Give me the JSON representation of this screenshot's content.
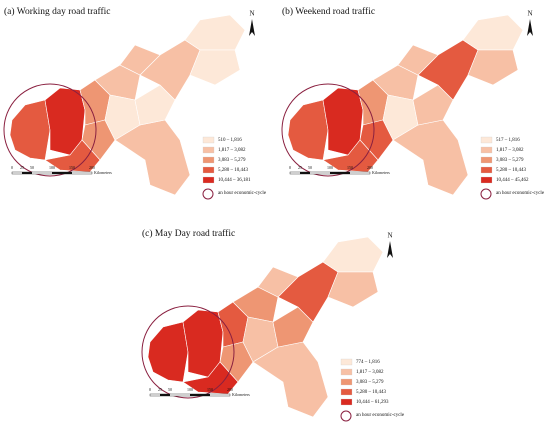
{
  "panels": [
    {
      "title": "(a) Working day road traffic",
      "legend": [
        "510 – 1,816",
        "1,817 – 3,082",
        "3,083 – 5,279",
        "5,280 – 10,443",
        "10,444 – 36,181"
      ],
      "circle_label": "an hour economic-cycle",
      "north": "N",
      "scale": [
        "0",
        "25",
        "50",
        "100",
        "150",
        "200"
      ],
      "scale_unit": "Kilometers"
    },
    {
      "title": "(b) Weekend road traffic",
      "legend": [
        "517 – 1,816",
        "1,817 – 3,082",
        "3,083 – 5,279",
        "5,280 – 10,443",
        "10,444 – 45,462"
      ],
      "circle_label": "an hour economic-cycle",
      "north": "N",
      "scale": [
        "0",
        "25",
        "50",
        "100",
        "150",
        "200"
      ],
      "scale_unit": "Kilometers"
    },
    {
      "title": "(c) May Day road traffic",
      "legend": [
        "774 – 1,816",
        "1,817 – 3,082",
        "3,083 – 5,279",
        "5,280 – 10,443",
        "10,444 – 61,293"
      ],
      "circle_label": "an hour economic-cycle",
      "north": "N",
      "scale": [
        "0",
        "25",
        "50",
        "100",
        "150",
        "200"
      ],
      "scale_unit": "Kilometers"
    }
  ]
}
